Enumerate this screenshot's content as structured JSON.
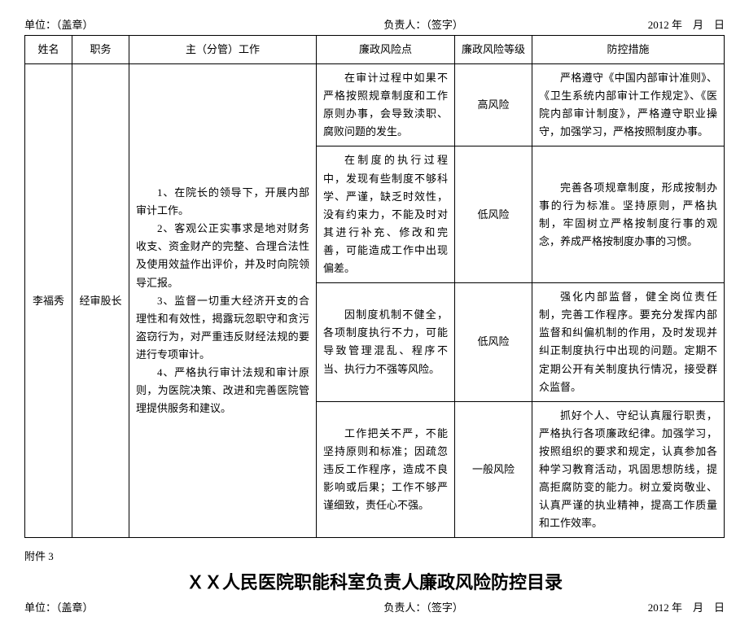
{
  "header1": {
    "unit": "单位：（盖章）",
    "leader": "负责人：（签字）",
    "date": "2012 年　月　日"
  },
  "table": {
    "columns": [
      "姓名",
      "职务",
      "主（分管）工作",
      "廉政风险点",
      "廉政风险等级",
      "防控措施"
    ],
    "name": "李福秀",
    "title": "经审股长",
    "work": [
      "1、在院长的领导下，开展内部审计工作。",
      "2、客观公正实事求是地对财务收支、资金财产的完整、合理合法性及使用效益作出评价，并及时向院领导汇报。",
      "3、监督一切重大经济开支的合理性和有效性，揭露玩忽职守和贪污盗窃行为，对严重违反财经法规的要进行专项审计。",
      "4、严格执行审计法规和审计原则，为医院决策、改进和完善医院管理提供服务和建议。"
    ],
    "rows": [
      {
        "risk": "在审计过程中如果不严格按照规章制度和工作原则办事，会导致渎职、腐败问题的发生。",
        "level": "高风险",
        "measure": "严格遵守《中国内部审计准则》、《卫生系统内部审计工作规定》、《医院内部审计制度》，严格遵守职业操守，加强学习，严格按照制度办事。"
      },
      {
        "risk": "在制度的执行过程中，发现有些制度不够科学、严谨，缺乏时效性，没有约束力，不能及时对其进行补充、修改和完善，可能造成工作中出现偏差。",
        "level": "低风险",
        "measure": "完善各项规章制度，形成按制办事的行为标准。坚持原则，严格执制，牢固树立严格按制度行事的观念，养成严格按制度办事的习惯。"
      },
      {
        "risk": "因制度机制不健全，各项制度执行不力，可能导致管理混乱、程序不当、执行力不强等风险。",
        "level": "低风险",
        "measure": "强化内部监督，健全岗位责任制，完善工作程序。要充分发挥内部监督和纠偏机制的作用，及时发现并纠正制度执行中出现的问题。定期不定期公开有关制度执行情况，接受群众监督。"
      },
      {
        "risk": "工作把关不严，不能坚持原则和标准；因疏忽违反工作程序，造成不良影响或后果；工作不够严谨细致，责任心不强。",
        "level": "一般风险",
        "measure": "抓好个人、守纪认真履行职责，严格执行各项廉政纪律。加强学习，按照组织的要求和规定，认真参加各种学习教育活动，巩固思想防线，提高拒腐防变的能力。树立爱岗敬业、认真严谨的执业精神，提高工作质量和工作效率。"
      }
    ]
  },
  "attachment": "附件 3",
  "doc_title": "ＸＸ人民医院职能科室负责人廉政风险防控目录",
  "header2": {
    "unit": "单位：（盖章）",
    "leader": "负责人：（签字）",
    "date": "2012 年　月　日"
  }
}
